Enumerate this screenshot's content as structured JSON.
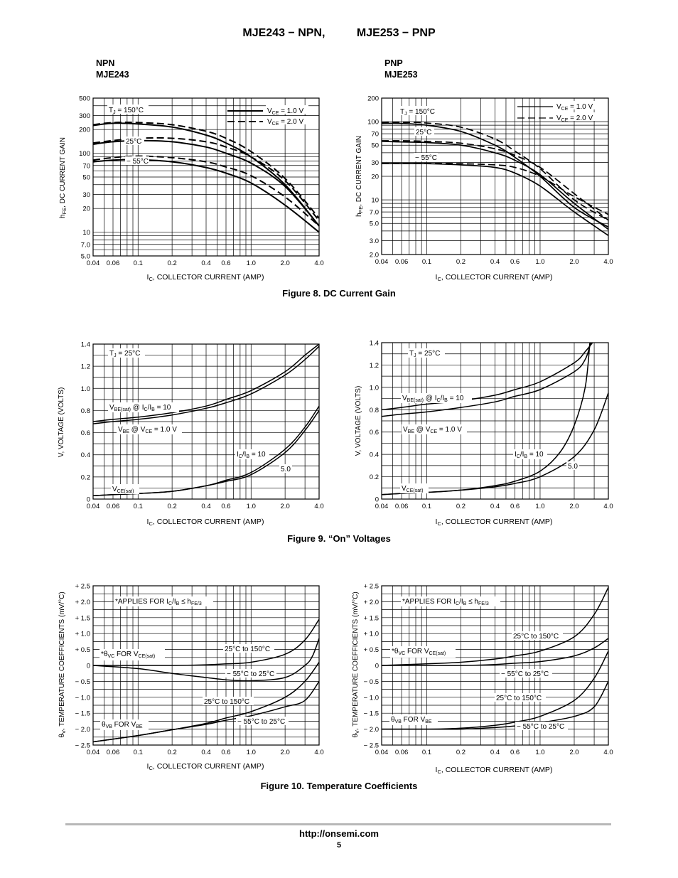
{
  "header": {
    "title": "MJE243 − NPN,          MJE253 − PNP"
  },
  "panels": {
    "npn_line1": "NPN",
    "npn_line2": "MJE243",
    "pnp_line1": "PNP",
    "pnp_line2": "MJE253"
  },
  "figures": {
    "fig8": "Figure 8. DC Current Gain",
    "fig9": "Figure 9. “On” Voltages",
    "fig10": "Figure 10. Temperature Coefficients"
  },
  "footer": {
    "url": "http://onsemi.com",
    "page": "5"
  },
  "chart_data": [
    {
      "id": "fig8-npn",
      "type": "line",
      "xlabel": "IC, COLLECTOR CURRENT (AMP)",
      "ylabel": "hFE, DC CURRENT GAIN",
      "x_scale": "log",
      "y_scale": "log",
      "xlim": [
        0.04,
        4.0
      ],
      "ylim": [
        5.0,
        500
      ],
      "x_ticks": [
        "0.04",
        "0.06",
        "0.1",
        "0.2",
        "0.4",
        "0.6",
        "1.0",
        "2.0",
        "4.0"
      ],
      "y_ticks": [
        "5.0",
        "7.0",
        "10",
        "20",
        "30",
        "50",
        "70",
        "100",
        "200",
        "300",
        "500"
      ],
      "legend": [
        {
          "label": "VCE = 1.0 V",
          "dash": "solid"
        },
        {
          "label": "VCE = 2.0 V",
          "dash": "dashed"
        }
      ],
      "annotations": [
        "TJ = 150°C",
        "25°C",
        "−55°C"
      ],
      "series": [
        {
          "temp": "150°C",
          "vce": "1.0 V",
          "dash": "solid",
          "x": [
            0.04,
            0.06,
            0.1,
            0.2,
            0.4,
            0.6,
            1.0,
            2.0,
            4.0
          ],
          "y": [
            225,
            240,
            235,
            215,
            170,
            135,
            90,
            40,
            12
          ]
        },
        {
          "temp": "150°C",
          "vce": "2.0 V",
          "dash": "dashed",
          "x": [
            0.04,
            0.06,
            0.1,
            0.2,
            0.4,
            0.6,
            1.0,
            2.0,
            4.0
          ],
          "y": [
            230,
            245,
            245,
            230,
            190,
            155,
            105,
            48,
            15
          ]
        },
        {
          "temp": "25°C",
          "vce": "1.0 V",
          "dash": "solid",
          "x": [
            0.04,
            0.06,
            0.1,
            0.2,
            0.4,
            0.6,
            1.0,
            2.0,
            4.0
          ],
          "y": [
            130,
            140,
            145,
            140,
            120,
            100,
            75,
            38,
            12
          ]
        },
        {
          "temp": "25°C",
          "vce": "2.0 V",
          "dash": "dashed",
          "x": [
            0.04,
            0.06,
            0.1,
            0.2,
            0.4,
            0.6,
            1.0,
            2.0,
            4.0
          ],
          "y": [
            135,
            145,
            155,
            155,
            140,
            120,
            90,
            45,
            14
          ]
        },
        {
          "temp": "−55°C",
          "vce": "1.0 V",
          "dash": "solid",
          "x": [
            0.04,
            0.06,
            0.1,
            0.2,
            0.4,
            0.6,
            1.0,
            2.0,
            4.0
          ],
          "y": [
            78,
            82,
            83,
            78,
            66,
            56,
            42,
            22,
            10
          ]
        },
        {
          "temp": "−55°C",
          "vce": "2.0 V",
          "dash": "dashed",
          "x": [
            0.04,
            0.06,
            0.1,
            0.2,
            0.4,
            0.6,
            1.0,
            2.0,
            4.0
          ],
          "y": [
            82,
            88,
            92,
            88,
            78,
            67,
            52,
            28,
            12
          ]
        }
      ]
    },
    {
      "id": "fig8-pnp",
      "type": "line",
      "xlabel": "IC, COLLECTOR CURRENT (AMP)",
      "ylabel": "hFE, DC CURRENT GAIN",
      "x_scale": "log",
      "y_scale": "log",
      "xlim": [
        0.04,
        4.0
      ],
      "ylim": [
        2.0,
        200
      ],
      "x_ticks": [
        "0.04",
        "0.06",
        "0.1",
        "0.2",
        "0.4",
        "0.6",
        "1.0",
        "2.0",
        "4.0"
      ],
      "y_ticks": [
        "2.0",
        "3.0",
        "5.0",
        "7.0",
        "10",
        "20",
        "30",
        "50",
        "70",
        "100",
        "200"
      ],
      "legend": [
        {
          "label": "VCE = 1.0 V",
          "dash": "solid"
        },
        {
          "label": "VCE = 2.0 V",
          "dash": "dashed"
        }
      ],
      "annotations": [
        "TJ = 150°C",
        "25°C",
        "−55°C"
      ],
      "series": [
        {
          "temp": "150°C",
          "vce": "1.0 V",
          "dash": "solid",
          "x": [
            0.04,
            0.06,
            0.1,
            0.2,
            0.4,
            0.6,
            1.0,
            2.0,
            4.0
          ],
          "y": [
            95,
            95,
            90,
            75,
            50,
            35,
            20,
            8,
            4.5
          ]
        },
        {
          "temp": "150°C",
          "vce": "2.0 V",
          "dash": "dashed",
          "x": [
            0.04,
            0.06,
            0.1,
            0.2,
            0.4,
            0.6,
            1.0,
            2.0,
            4.0
          ],
          "y": [
            97,
            98,
            96,
            85,
            60,
            42,
            25,
            10,
            5.5
          ]
        },
        {
          "temp": "25°C",
          "vce": "1.0 V",
          "dash": "solid",
          "x": [
            0.04,
            0.06,
            0.1,
            0.2,
            0.4,
            0.6,
            1.0,
            2.0,
            4.0
          ],
          "y": [
            56,
            55,
            54,
            50,
            40,
            32,
            21,
            9,
            4.2
          ]
        },
        {
          "temp": "25°C",
          "vce": "2.0 V",
          "dash": "dashed",
          "x": [
            0.04,
            0.06,
            0.1,
            0.2,
            0.4,
            0.6,
            1.0,
            2.0,
            4.0
          ],
          "y": [
            57,
            57,
            56,
            53,
            45,
            37,
            26,
            12,
            5.5
          ]
        },
        {
          "temp": "−55°C",
          "vce": "1.0 V",
          "dash": "solid",
          "x": [
            0.04,
            0.06,
            0.1,
            0.2,
            0.4,
            0.6,
            1.0,
            2.0,
            4.0
          ],
          "y": [
            29,
            29,
            29,
            28,
            26,
            22,
            15,
            7,
            3.5
          ]
        },
        {
          "temp": "−55°C",
          "vce": "2.0 V",
          "dash": "dashed",
          "x": [
            0.04,
            0.06,
            0.1,
            0.2,
            0.4,
            0.6,
            1.0,
            2.0,
            4.0
          ],
          "y": [
            29.5,
            29.5,
            29.5,
            29,
            28,
            26,
            20,
            11,
            6.5
          ]
        }
      ]
    },
    {
      "id": "fig9-npn",
      "type": "line",
      "xlabel": "IC, COLLECTOR CURRENT (AMP)",
      "ylabel": "V, VOLTAGE (VOLTS)",
      "x_scale": "log",
      "y_scale": "linear",
      "xlim": [
        0.04,
        4.0
      ],
      "ylim": [
        0,
        1.4
      ],
      "x_ticks": [
        "0.04",
        "0.06",
        "0.1",
        "0.2",
        "0.4",
        "0.6",
        "1.0",
        "2.0",
        "4.0"
      ],
      "y_ticks": [
        "0",
        "0.2",
        "0.4",
        "0.6",
        "0.8",
        "1.0",
        "1.2",
        "1.4"
      ],
      "annotations": [
        "TJ = 25°C",
        "VBE(sat) @ IC/IB = 10",
        "VBE @ VCE = 1.0 V",
        "IC/IB = 10",
        "5.0",
        "VCE(sat)"
      ],
      "series": [
        {
          "name": "VBE(sat) @ IC/IB = 10",
          "x": [
            0.04,
            0.06,
            0.1,
            0.2,
            0.4,
            0.6,
            1.0,
            2.0,
            3.0,
            4.0
          ],
          "y": [
            0.7,
            0.72,
            0.74,
            0.78,
            0.84,
            0.9,
            0.98,
            1.15,
            1.3,
            1.42
          ]
        },
        {
          "name": "VBE @ VCE = 1.0 V",
          "x": [
            0.04,
            0.06,
            0.1,
            0.2,
            0.4,
            0.6,
            1.0,
            2.0,
            3.0,
            4.0
          ],
          "y": [
            0.68,
            0.7,
            0.72,
            0.76,
            0.82,
            0.87,
            0.95,
            1.12,
            1.26,
            1.38
          ]
        },
        {
          "name": "VCE(sat) IC/IB = 10",
          "x": [
            0.04,
            0.06,
            0.1,
            0.2,
            0.4,
            0.6,
            1.0,
            2.0,
            3.0,
            4.0
          ],
          "y": [
            0.03,
            0.04,
            0.05,
            0.07,
            0.12,
            0.17,
            0.24,
            0.45,
            0.65,
            0.84
          ]
        },
        {
          "name": "VCE(sat) IC/IB = 5.0",
          "x": [
            0.04,
            0.06,
            0.1,
            0.2,
            0.4,
            0.6,
            1.0,
            2.0,
            3.0,
            4.0
          ],
          "y": [
            0.03,
            0.04,
            0.05,
            0.07,
            0.12,
            0.16,
            0.22,
            0.42,
            0.62,
            0.8
          ]
        }
      ]
    },
    {
      "id": "fig9-pnp",
      "type": "line",
      "xlabel": "IC, COLLECTOR CURRENT (AMP)",
      "ylabel": "V, VOLTAGE (VOLTS)",
      "x_scale": "log",
      "y_scale": "linear",
      "xlim": [
        0.04,
        4.0
      ],
      "ylim": [
        0,
        1.4
      ],
      "x_ticks": [
        "0.04",
        "0.06",
        "0.1",
        "0.2",
        "0.4",
        "0.6",
        "1.0",
        "2.0",
        "4.0"
      ],
      "y_ticks": [
        "0",
        "0.2",
        "0.4",
        "0.6",
        "0.8",
        "1.0",
        "1.2",
        "1.4"
      ],
      "annotations": [
        "TJ = 25°C",
        "VBE(sat) @ IC/IB = 10",
        "VBE @ VCE = 1.0 V",
        "IC/IB = 10",
        "5.0",
        "VCE(sat)"
      ],
      "series": [
        {
          "name": "VBE(sat) @ IC/IB = 10",
          "x": [
            0.04,
            0.06,
            0.1,
            0.2,
            0.4,
            0.6,
            1.0,
            2.0,
            2.5,
            2.9
          ],
          "y": [
            0.8,
            0.82,
            0.85,
            0.88,
            0.93,
            0.98,
            1.05,
            1.22,
            1.32,
            1.42
          ]
        },
        {
          "name": "VBE @ VCE = 1.0 V",
          "x": [
            0.04,
            0.06,
            0.1,
            0.2,
            0.4,
            0.6,
            1.0,
            2.0,
            2.5,
            2.8
          ],
          "y": [
            0.74,
            0.76,
            0.78,
            0.82,
            0.87,
            0.92,
            0.98,
            1.14,
            1.25,
            1.4
          ]
        },
        {
          "name": "VCE(sat) IC/IB = 10",
          "x": [
            0.04,
            0.06,
            0.1,
            0.2,
            0.4,
            0.6,
            1.0,
            1.5,
            2.0,
            2.5,
            2.75
          ],
          "y": [
            0.04,
            0.05,
            0.06,
            0.08,
            0.12,
            0.16,
            0.25,
            0.42,
            0.66,
            1.0,
            1.4
          ]
        },
        {
          "name": "VCE(sat) IC/IB = 5.0",
          "x": [
            0.04,
            0.06,
            0.1,
            0.2,
            0.4,
            0.6,
            1.0,
            2.0,
            3.0,
            4.0
          ],
          "y": [
            0.04,
            0.05,
            0.06,
            0.08,
            0.11,
            0.14,
            0.2,
            0.38,
            0.62,
            0.95
          ]
        }
      ]
    },
    {
      "id": "fig10-npn",
      "type": "line",
      "xlabel": "IC, COLLECTOR CURRENT (AMP)",
      "ylabel": "θV, TEMPERATURE COEFFICIENTS (mV/°C)",
      "x_scale": "log",
      "y_scale": "linear",
      "xlim": [
        0.04,
        4.0
      ],
      "ylim": [
        -2.5,
        2.5
      ],
      "x_ticks": [
        "0.04",
        "0.06",
        "0.1",
        "0.2",
        "0.4",
        "0.6",
        "1.0",
        "2.0",
        "4.0"
      ],
      "y_ticks": [
        "+ 2.5",
        "+ 2.0",
        "+ 1.5",
        "+ 1.0",
        "+ 0.5",
        "0",
        "− 0.5",
        "− 1.0",
        "− 1.5",
        "− 2.0",
        "− 2.5"
      ],
      "annotations": [
        "*APPLIES FOR IC/IB ≤ hFE/3",
        "*θVC FOR VCE(sat)",
        "25°C to 150°C",
        "−55°C to 25°C",
        "25°C to 150°C",
        "θVB FOR VBE",
        "−55°C to 25°C"
      ],
      "series": [
        {
          "name": "θVC 25°C to 150°C",
          "x": [
            0.04,
            0.1,
            0.2,
            0.4,
            0.6,
            1.0,
            2.0,
            3.0,
            4.0
          ],
          "y": [
            0,
            0,
            0,
            0.02,
            0.05,
            0.1,
            0.35,
            0.8,
            1.45
          ]
        },
        {
          "name": "θVC −55°C to 25°C",
          "x": [
            0.04,
            0.1,
            0.2,
            0.4,
            0.6,
            1.0,
            2.0,
            3.0,
            3.5,
            4.0
          ],
          "y": [
            0,
            -0.1,
            -0.25,
            -0.38,
            -0.45,
            -0.48,
            -0.38,
            0,
            0.3,
            0.85
          ]
        },
        {
          "name": "θVB 25°C to 150°C",
          "x": [
            0.04,
            0.1,
            0.2,
            0.4,
            0.6,
            1.0,
            2.0,
            3.0,
            4.0
          ],
          "y": [
            -2.4,
            -2.2,
            -2.02,
            -1.82,
            -1.65,
            -1.45,
            -1.0,
            -0.5,
            0.1
          ]
        },
        {
          "name": "θVB −55°C to 25°C",
          "x": [
            0.04,
            0.1,
            0.2,
            0.4,
            0.6,
            1.0,
            2.0,
            3.0,
            4.0
          ],
          "y": [
            -2.4,
            -2.2,
            -2.02,
            -1.85,
            -1.72,
            -1.58,
            -1.3,
            -1.1,
            -0.5
          ]
        }
      ]
    },
    {
      "id": "fig10-pnp",
      "type": "line",
      "xlabel": "IC, COLLECTOR CURRENT (AMP)",
      "ylabel": "θV, TEMPERATURE COEFFICIENTS (mV/°C)",
      "x_scale": "log",
      "y_scale": "linear",
      "xlim": [
        0.04,
        4.0
      ],
      "ylim": [
        -2.5,
        2.5
      ],
      "x_ticks": [
        "0.04",
        "0.06",
        "0.1",
        "0.2",
        "0.4",
        "0.6",
        "1.0",
        "2.0",
        "4.0"
      ],
      "y_ticks": [
        "+ 2.5",
        "+ 2.0",
        "+ 1.5",
        "+ 1.0",
        "+ 0.5",
        "0",
        "− 0.5",
        "− 1.0",
        "− 1.5",
        "− 2.0",
        "− 2.5"
      ],
      "annotations": [
        "*APPLIES FOR IC/IB ≤ hFE/3",
        "25°C to 150°C",
        "*θVC FOR VCE(sat)",
        "−55°C to 25°C",
        "25°C to 150°C",
        "θVB FOR VBE",
        "−55°C to 25°C"
      ],
      "series": [
        {
          "name": "θVC 25°C to 150°C",
          "x": [
            0.04,
            0.1,
            0.2,
            0.4,
            0.6,
            1.0,
            2.0,
            3.0,
            4.0
          ],
          "y": [
            0,
            0.05,
            0.1,
            0.2,
            0.3,
            0.45,
            0.9,
            1.6,
            2.45
          ]
        },
        {
          "name": "θVC −55°C to 25°C",
          "x": [
            0.04,
            0.1,
            0.2,
            0.4,
            0.6,
            1.0,
            2.0,
            3.0,
            4.0
          ],
          "y": [
            0,
            0,
            0,
            0.03,
            0.07,
            0.12,
            0.3,
            0.55,
            0.85
          ]
        },
        {
          "name": "θVB 25°C to 150°C",
          "x": [
            0.04,
            0.1,
            0.2,
            0.4,
            0.6,
            1.0,
            2.0,
            3.0,
            4.0
          ],
          "y": [
            -2.0,
            -2.0,
            -1.97,
            -1.88,
            -1.78,
            -1.6,
            -1.1,
            -0.4,
            0.45
          ]
        },
        {
          "name": "θVB −55°C to 25°C",
          "x": [
            0.04,
            0.1,
            0.2,
            0.4,
            0.6,
            1.0,
            2.0,
            3.0,
            4.0
          ],
          "y": [
            -2.0,
            -2.0,
            -2.0,
            -1.95,
            -1.9,
            -1.8,
            -1.6,
            -1.3,
            -0.5
          ]
        }
      ]
    }
  ]
}
